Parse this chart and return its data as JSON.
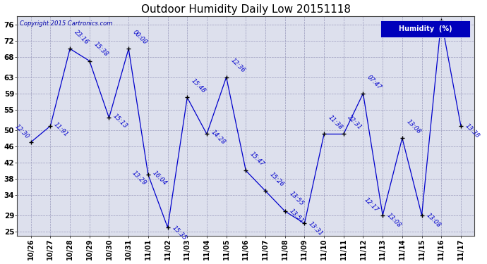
{
  "title": "Outdoor Humidity Daily Low 20151118",
  "copyright": "Copyright 2015 Cartronics.com",
  "legend_label": "Humidity  (%)",
  "dates": [
    "10/26",
    "10/27",
    "10/28",
    "10/29",
    "10/30",
    "10/31",
    "11/01",
    "11/02",
    "11/03",
    "11/04",
    "11/05",
    "11/06",
    "11/07",
    "11/08",
    "11/09",
    "11/10",
    "11/11",
    "11/12",
    "11/13",
    "11/14",
    "11/15",
    "11/16",
    "11/17"
  ],
  "y_values": [
    47,
    51,
    70,
    67,
    53,
    70,
    39,
    26,
    58,
    49,
    63,
    40,
    35,
    30,
    27,
    49,
    49,
    59,
    29,
    48,
    29,
    77,
    51
  ],
  "point_labels": [
    "12:30",
    "11:91",
    "23:16",
    "15:38",
    "15:13",
    "00:00",
    "16:04\n13:29",
    "15:35",
    "15:48",
    "14:28",
    "12:36",
    "15:47",
    "15:26",
    "13:55\n13:51",
    "13:31",
    "11:38\n11:38",
    "22:31",
    "07:47",
    "12:17\n13:08",
    "13:08",
    "13:08",
    "",
    "13:38"
  ],
  "point_labels_clean": [
    "12:30",
    "11:91",
    "23:16",
    "15:38",
    "15:13",
    "00:00",
    "16:04",
    "15:35",
    "15:48",
    "14:28",
    "12:36",
    "15:47",
    "15:26",
    "13:55",
    "13:31",
    "11:38",
    "22:31",
    "07:47",
    "12:17",
    "13:08",
    "13:08",
    "",
    "13:38"
  ],
  "extra_labels": [
    null,
    null,
    null,
    null,
    null,
    null,
    "13:29",
    null,
    null,
    null,
    null,
    null,
    null,
    "13:51",
    null,
    null,
    null,
    null,
    "13:08",
    null,
    null,
    null,
    null
  ],
  "yticks": [
    25,
    29,
    34,
    38,
    42,
    46,
    50,
    55,
    59,
    63,
    68,
    72,
    76
  ],
  "line_color": "#0000CC",
  "bg_color": "#dde0ed",
  "grid_color": "#9999bb",
  "legend_bg": "#0000bb"
}
